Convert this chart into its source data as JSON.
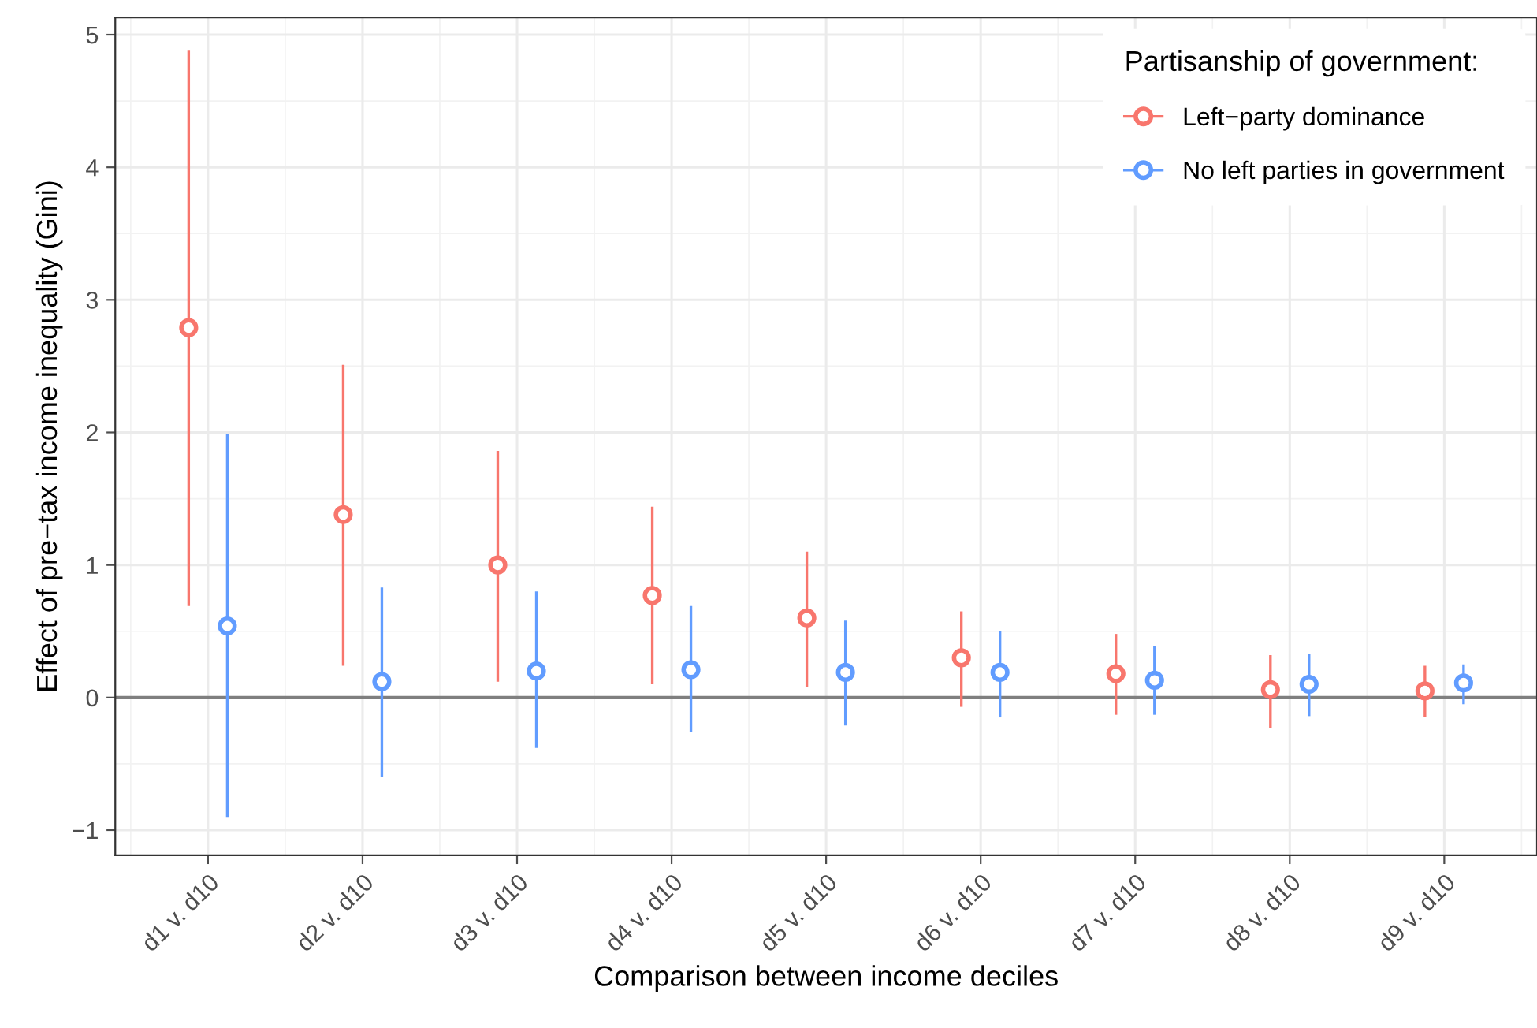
{
  "chart_data": {
    "type": "scatter",
    "xlabel": "Comparison between income deciles",
    "ylabel": "Effect of pre−tax income inequality (Gini)",
    "legend_title": "Partisanship of government:",
    "categories": [
      "d1 v. d10",
      "d2 v. d10",
      "d3 v. d10",
      "d4 v. d10",
      "d5 v. d10",
      "d6 v. d10",
      "d7 v. d10",
      "d8 v. d10",
      "d9 v. d10"
    ],
    "series": [
      {
        "name": "Left−party dominance",
        "color": "#f8766d",
        "values": [
          2.79,
          1.38,
          1.0,
          0.77,
          0.6,
          0.3,
          0.18,
          0.06,
          0.05
        ],
        "errors": [
          [
            0.69,
            4.88
          ],
          [
            0.24,
            2.51
          ],
          [
            0.12,
            1.86
          ],
          [
            0.1,
            1.44
          ],
          [
            0.08,
            1.1
          ],
          [
            -0.07,
            0.65
          ],
          [
            -0.13,
            0.48
          ],
          [
            -0.23,
            0.32
          ],
          [
            -0.15,
            0.24
          ]
        ]
      },
      {
        "name": "No left parties in government",
        "color": "#619cff",
        "values": [
          0.54,
          0.12,
          0.2,
          0.21,
          0.19,
          0.19,
          0.13,
          0.1,
          0.11
        ],
        "errors": [
          [
            -0.9,
            1.99
          ],
          [
            -0.6,
            0.83
          ],
          [
            -0.38,
            0.8
          ],
          [
            -0.26,
            0.69
          ],
          [
            -0.21,
            0.58
          ],
          [
            -0.15,
            0.5
          ],
          [
            -0.13,
            0.39
          ],
          [
            -0.14,
            0.33
          ],
          [
            -0.05,
            0.25
          ]
        ]
      }
    ],
    "ylim": [
      -1.19,
      5.13
    ],
    "yticks": [
      {
        "value": -1,
        "label": "−1"
      },
      0,
      1,
      2,
      3,
      4,
      5
    ],
    "ref_lines": [
      {
        "axis": "y",
        "value": 0,
        "color": "#7f7f7f"
      }
    ],
    "grid": true,
    "legend": "top right",
    "marker": "circle"
  }
}
